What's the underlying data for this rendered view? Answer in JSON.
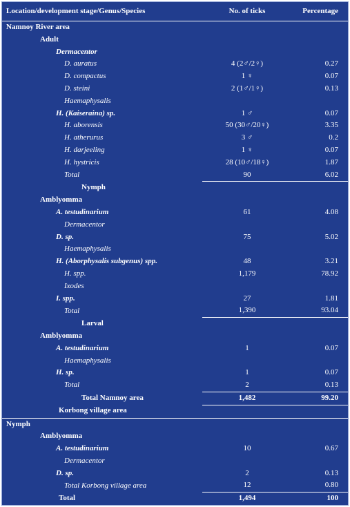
{
  "table": {
    "header": [
      "Location/development stage/Genus/Species",
      "No. of ticks",
      "Percentage"
    ],
    "rows": [
      [
        "Namnoy River area",
        "",
        ""
      ],
      [
        "Adult",
        "",
        ""
      ],
      [
        "Dermacentor",
        "",
        ""
      ],
      [
        "D. auratus",
        "4 (2♂/2♀)",
        "0.27"
      ],
      [
        "D. compactus",
        "1 ♀",
        "0.07"
      ],
      [
        "D. steini",
        "2 (1♂/1♀)",
        "0.13"
      ],
      [
        "Haemaphysalis",
        "",
        ""
      ],
      [
        "H. (Kaiseraina) sp.",
        "1 ♂",
        "0.07"
      ],
      [
        "H. aborensis",
        "50 (30♂/20♀)",
        "3.35"
      ],
      [
        "H. atherurus",
        "3 ♂",
        "0.2"
      ],
      [
        "H. darjeeling",
        "1 ♀",
        "0.07"
      ],
      [
        "H. hystricis",
        "28 (10♂/18♀)",
        "1.87"
      ],
      [
        "Total",
        "90",
        "6.02"
      ],
      [
        "Nymph",
        "",
        ""
      ],
      [
        "Amblyomma",
        "",
        ""
      ],
      [
        "A. testudinarium",
        "61",
        "4.08"
      ],
      [
        "Dermacentor",
        "",
        ""
      ],
      [
        "D. sp.",
        "75",
        "5.02"
      ],
      [
        "Haemaphysalis",
        "",
        ""
      ],
      [
        "H. (Aborphysalis subgenus) spp.",
        "48",
        "3.21"
      ],
      [
        "H. spp.",
        "1,179",
        "78.92"
      ],
      [
        "Ixodes",
        "",
        ""
      ],
      [
        "I. spp.",
        "27",
        "1.81"
      ],
      [
        "Total",
        "1,390",
        "93.04"
      ],
      [
        "Larval",
        "",
        ""
      ],
      [
        "Amblyomma",
        "",
        ""
      ],
      [
        "A. testudinarium",
        "1",
        "0.07"
      ],
      [
        "Haemaphysalis",
        "",
        ""
      ],
      [
        "H. sp.",
        "1",
        "0.07"
      ],
      [
        "Total",
        "2",
        "0.13"
      ],
      [
        "Total Namnoy area",
        "1,482",
        "99.20"
      ],
      [
        "Korbong village area",
        "",
        ""
      ],
      [
        "Nymph",
        "",
        ""
      ],
      [
        "Amblyomma",
        "",
        ""
      ],
      [
        "A. testudinarium",
        "10",
        "0.67"
      ],
      [
        "Dermacentor",
        "",
        ""
      ],
      [
        "D. sp.",
        "2",
        "0.13"
      ],
      [
        "Total Korbong village area",
        "12",
        "0.80"
      ],
      [
        "Total",
        "1,494",
        "100"
      ]
    ]
  }
}
